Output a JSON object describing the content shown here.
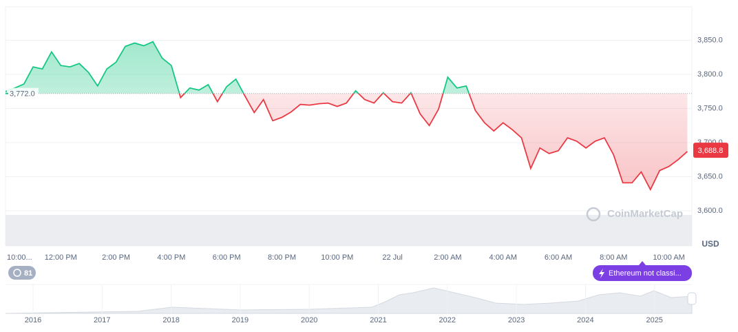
{
  "chart_data": {
    "type": "line",
    "categories": [
      "10:00...",
      null,
      null,
      null,
      null,
      null,
      "12:00 PM",
      null,
      null,
      null,
      null,
      null,
      "2:00 PM",
      null,
      null,
      null,
      null,
      null,
      "4:00 PM",
      null,
      null,
      null,
      null,
      null,
      "6:00 PM",
      null,
      null,
      null,
      null,
      null,
      "8:00 PM",
      null,
      null,
      null,
      null,
      null,
      "10:00 PM",
      null,
      null,
      null,
      null,
      null,
      "22 Jul",
      null,
      null,
      null,
      null,
      null,
      "2:00 AM",
      null,
      null,
      null,
      null,
      null,
      "4:00 AM",
      null,
      null,
      null,
      null,
      null,
      "6:00 AM",
      null,
      null,
      null,
      null,
      null,
      "8:00 AM",
      null,
      null,
      null,
      null,
      null,
      "10:00 AM",
      null,
      null
    ],
    "values": [
      3775,
      3780,
      3786,
      3811,
      3808,
      3833,
      3813,
      3811,
      3816,
      3803,
      3783,
      3808,
      3818,
      3841,
      3846,
      3842,
      3848,
      3824,
      3813,
      3766,
      3780,
      3777,
      3785,
      3760,
      3782,
      3793,
      3768,
      3744,
      3763,
      3732,
      3737,
      3745,
      3756,
      3755,
      3757,
      3758,
      3753,
      3758,
      3776,
      3763,
      3758,
      3773,
      3760,
      3758,
      3773,
      3742,
      3725,
      3749,
      3796,
      3780,
      3783,
      3747,
      3729,
      3717,
      3729,
      3719,
      3707,
      3662,
      3692,
      3684,
      3688,
      3707,
      3702,
      3692,
      3702,
      3707,
      3682,
      3641,
      3641,
      3657,
      3631,
      3659,
      3665,
      3675,
      3687
    ],
    "up_color": "#16c784",
    "down_color": "#ea3943",
    "baseline": {
      "value": 3772,
      "label": "3,772.0"
    },
    "last_price": {
      "value": 3688.8,
      "label": "3,688.8"
    },
    "ylim": [
      3548.5,
      3899
    ],
    "yticks": [
      {
        "value": 3600,
        "label": "3,600.0"
      },
      {
        "value": 3650,
        "label": "3,650.0"
      },
      {
        "value": 3700,
        "label": "3,700.0"
      },
      {
        "value": 3750,
        "label": "3,750.0"
      },
      {
        "value": 3800,
        "label": "3,800.0"
      },
      {
        "value": 3850,
        "label": "3,850.0"
      }
    ],
    "y_label": "USD",
    "grid": true,
    "watermark": "CoinMarketCap"
  },
  "navigator": {
    "years": [
      "2016",
      "2017",
      "2018",
      "2019",
      "2020",
      "2021",
      "2022",
      "2023",
      "2024",
      "2025"
    ]
  },
  "ui": {
    "counter": "81",
    "alert": "Ethereum not classi..."
  }
}
